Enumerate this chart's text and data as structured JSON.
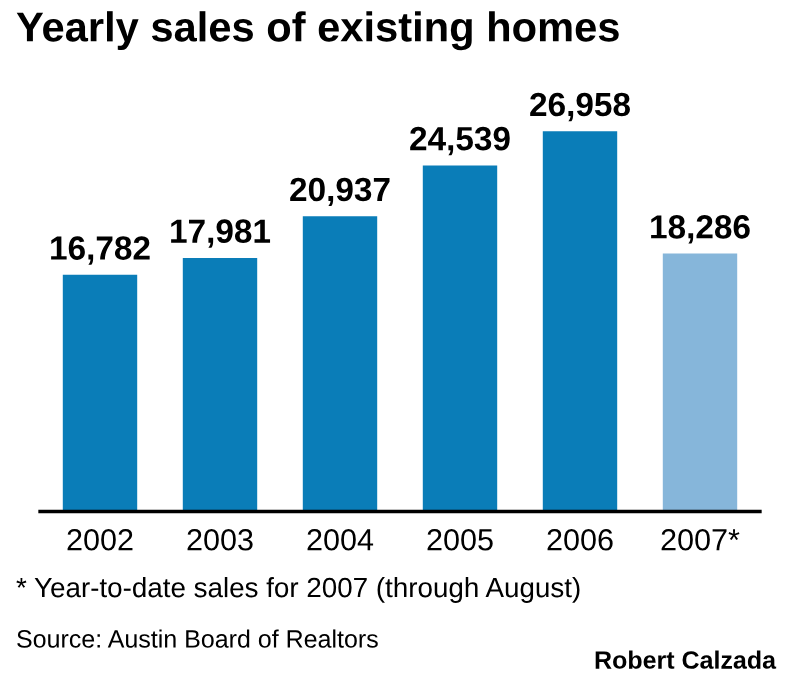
{
  "chart_data": {
    "type": "bar",
    "title": "Yearly sales of existing homes",
    "categories": [
      "2002",
      "2003",
      "2004",
      "2005",
      "2006",
      "2007*"
    ],
    "values": [
      16782,
      17981,
      20937,
      24539,
      26958,
      18286
    ],
    "colors": [
      "#0a7db8",
      "#0a7db8",
      "#0a7db8",
      "#0a7db8",
      "#0a7db8",
      "#86b6da"
    ],
    "value_labels": [
      "16,782",
      "17,981",
      "20,937",
      "24,539",
      "26,958",
      "18,286"
    ],
    "annotations": [
      "* Year-to-date sales for 2007 (through August)",
      "Source: Austin Board of Realtors",
      "Robert Calzada"
    ],
    "grid": false,
    "legend": false
  }
}
